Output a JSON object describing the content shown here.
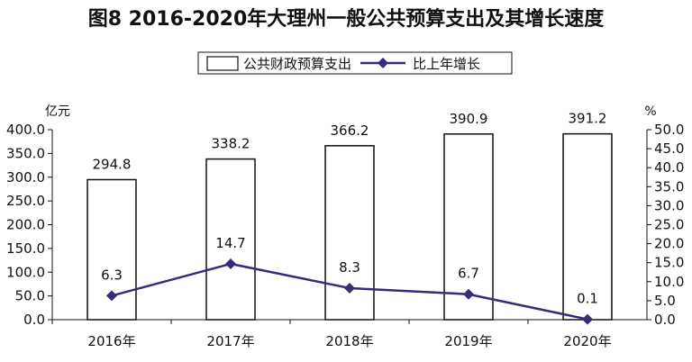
{
  "header": {
    "title": "图8  2016-2020年大理州一般公共预算支出及其增长速度"
  },
  "legend": {
    "bar_label": "公共财政预算支出",
    "line_label": "比上年增长"
  },
  "axes": {
    "left_unit": "亿元",
    "right_unit": "%"
  },
  "colors": {
    "line": "#3b2a78",
    "bar_fill": "#ffffff",
    "bar_stroke": "#111111"
  },
  "chart_data": {
    "type": "bar",
    "title": "图8  2016-2020年大理州一般公共预算支出及其增长速度",
    "categories": [
      "2016年",
      "2017年",
      "2018年",
      "2019年",
      "2020年"
    ],
    "series": [
      {
        "name": "公共财政预算支出",
        "type": "bar",
        "axis": "left",
        "values": [
          294.8,
          338.2,
          366.2,
          390.9,
          391.2
        ]
      },
      {
        "name": "比上年增长",
        "type": "line",
        "axis": "right",
        "values": [
          6.3,
          14.7,
          8.3,
          6.7,
          0.1
        ]
      }
    ],
    "y_left": {
      "label": "亿元",
      "ylim": [
        0,
        400
      ],
      "ticks": [
        "0.0",
        "50.0",
        "100.0",
        "150.0",
        "200.0",
        "250.0",
        "300.0",
        "350.0",
        "400.0"
      ]
    },
    "y_right": {
      "label": "%",
      "ylim": [
        0,
        50
      ],
      "ticks": [
        "0.0",
        "5.0",
        "10.0",
        "15.0",
        "20.0",
        "25.0",
        "30.0",
        "35.0",
        "40.0",
        "45.0",
        "50.0"
      ]
    },
    "bar_labels": [
      "294.8",
      "338.2",
      "366.2",
      "390.9",
      "391.2"
    ],
    "line_labels": [
      "6.3",
      "14.7",
      "8.3",
      "6.7",
      "0.1"
    ],
    "grid": false,
    "legend_position": "top"
  }
}
